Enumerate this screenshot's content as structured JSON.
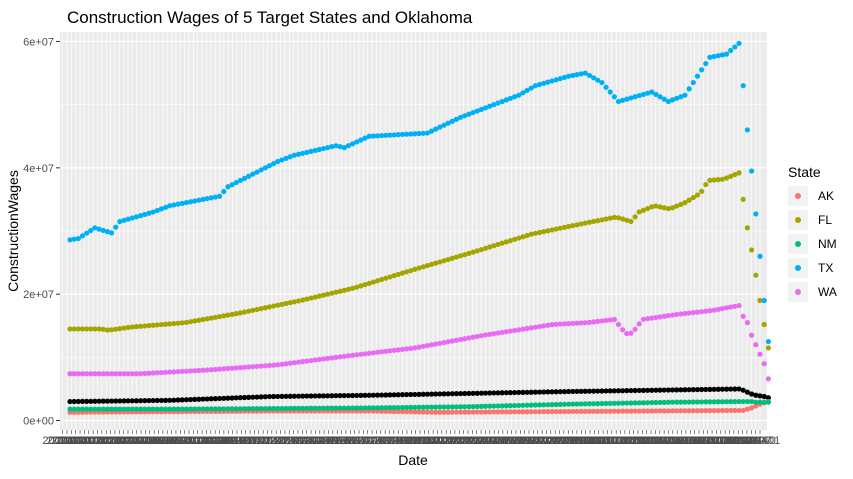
{
  "chart_data": {
    "type": "scatter",
    "title": "Construction Wages of 5 Target States and Oklahoma",
    "xlabel": "Date",
    "ylabel": "ConstructionWages",
    "x": [
      "2000-01",
      "2000-04",
      "2000-07",
      "2000-10",
      "2001-01",
      "2001-04",
      "2001-07",
      "2001-10",
      "2002-01",
      "2002-04",
      "2002-07",
      "2002-10",
      "2003-01",
      "2003-04",
      "2003-07",
      "2003-10",
      "2004-01",
      "2004-04",
      "2004-07",
      "2004-10",
      "2005-01",
      "2005-04",
      "2005-07",
      "2005-10",
      "2006-01",
      "2006-04",
      "2006-07",
      "2006-10",
      "2007-01",
      "2007-04",
      "2007-07",
      "2007-10",
      "2008-01",
      "2008-04",
      "2008-07",
      "2008-10",
      "2009-01",
      "2009-04",
      "2009-07",
      "2009-10",
      "2010-01",
      "2010-04",
      "2010-07",
      "2010-10",
      "2011-01",
      "2011-04",
      "2011-07",
      "2011-10",
      "2012-01",
      "2012-04",
      "2012-07",
      "2012-10",
      "2013-01",
      "2013-04",
      "2013-07",
      "2013-10",
      "2014-01",
      "2014-04",
      "2014-07",
      "2014-10",
      "2015-01",
      "2015-04",
      "2015-07",
      "2015-10",
      "2016-01",
      "2016-04",
      "2016-07",
      "2016-10",
      "2017-01",
      "2017-04",
      "2017-07",
      "2017-10",
      "2018-01",
      "2018-04",
      "2018-07",
      "2018-10",
      "2019-01",
      "2019-04",
      "2019-07",
      "2019-10",
      "2020-01",
      "2020-04",
      "2020-07",
      "2020-10",
      "2021-01",
      "2021-04",
      "2021-07",
      "2021-10",
      "2022-01",
      "2022-04",
      "2022-07",
      "2022-10",
      "2023-01",
      "2023-04",
      "2023-07",
      "2023-10",
      "2024-01",
      "2024-04",
      "2024-07",
      "2024-10",
      "2025-01",
      "2025-04",
      "2025-07",
      "2025-10",
      "2026-01",
      "2026-04",
      "2026-07",
      "2026-10",
      "2027-01",
      "2027-04",
      "2027-07",
      "2027-10",
      "2028-01",
      "2028-04",
      "2028-07",
      "2028-10",
      "2029-01",
      "2029-04",
      "2029-07",
      "2029-10",
      "2030-01",
      "2030-04",
      "2030-07",
      "2030-10",
      "2031-01",
      "2031-04",
      "2031-07",
      "2031-10",
      "2032-01",
      "2032-04",
      "2032-07",
      "2032-10",
      "2033-01",
      "2033-04",
      "2033-07",
      "2033-10",
      "2034-01",
      "2034-04",
      "2034-07",
      "2034-10",
      "2035-01",
      "2035-04",
      "2035-07",
      "2035-10",
      "2036-01",
      "2036-04",
      "2036-07",
      "2036-10",
      "2037-01",
      "2037-04",
      "2037-07",
      "2037-10",
      "2038-01",
      "2038-04",
      "2038-07",
      "2038-10",
      "2039-01",
      "2039-04",
      "2039-07",
      "2039-10",
      "2040-01"
    ],
    "xlim": [
      -0.6,
      161.6
    ],
    "ylim": [
      -1500000,
      61500000
    ],
    "y_ticks": [
      0,
      20000000,
      40000000,
      60000000
    ],
    "y_tick_labels": [
      "0e+00",
      "2e+07",
      "4e+07",
      "6e+07"
    ],
    "x_tick_labels": [
      "2000-01",
      "2040-01"
    ],
    "grid": true,
    "legend": {
      "title": "State",
      "position": "right"
    },
    "knots": {
      "TX": [
        [
          0,
          28600000.0
        ],
        [
          2,
          28800000.0
        ],
        [
          6,
          30500000.0
        ],
        [
          10,
          29700000.0
        ],
        [
          12,
          31500000.0
        ],
        [
          20,
          33000000.0
        ],
        [
          24,
          34000000.0
        ],
        [
          36,
          35500000.0
        ],
        [
          38,
          37000000.0
        ],
        [
          44,
          39000000.0
        ],
        [
          50,
          41000000.0
        ],
        [
          54,
          42000000.0
        ],
        [
          64,
          43500000.0
        ],
        [
          66,
          43200000.0
        ],
        [
          72,
          45000000.0
        ],
        [
          86,
          45500000.0
        ],
        [
          94,
          48000000.0
        ],
        [
          108,
          51500000.0
        ],
        [
          112,
          53000000.0
        ],
        [
          120,
          54500000.0
        ],
        [
          124,
          55000000.0
        ],
        [
          128,
          53500000.0
        ],
        [
          132,
          50500000.0
        ],
        [
          140,
          52000000.0
        ],
        [
          144,
          50500000.0
        ],
        [
          148,
          51500000.0
        ],
        [
          154,
          57500000.0
        ],
        [
          158,
          58000000.0
        ],
        [
          161,
          59700000.0
        ]
      ],
      "FL": [
        [
          0,
          14500000.0
        ],
        [
          8,
          14500000.0
        ],
        [
          10,
          14300000.0
        ],
        [
          16,
          14800000.0
        ],
        [
          30,
          15500000.0
        ],
        [
          44,
          17000000.0
        ],
        [
          60,
          19000000.0
        ],
        [
          74,
          21000000.0
        ],
        [
          90,
          24000000.0
        ],
        [
          104,
          26500000.0
        ],
        [
          120,
          29500000.0
        ],
        [
          136,
          31500000.0
        ],
        [
          142,
          32200000.0
        ],
        [
          146,
          31500000.0
        ],
        [
          148,
          33000000.0
        ],
        [
          152,
          34000000.0
        ],
        [
          156,
          33500000.0
        ],
        [
          160,
          34500000.0
        ],
        [
          164,
          36000000.0
        ],
        [
          166,
          38000000.0
        ],
        [
          170,
          38200000.0
        ],
        [
          174,
          39200000.0
        ]
      ],
      "WA": [
        [
          0,
          7400000.0
        ],
        [
          20,
          7400000.0
        ],
        [
          40,
          8000000.0
        ],
        [
          60,
          8800000.0
        ],
        [
          80,
          10200000.0
        ],
        [
          100,
          11500000.0
        ],
        [
          120,
          13500000.0
        ],
        [
          140,
          15200000.0
        ],
        [
          150,
          15500000.0
        ],
        [
          158,
          16000000.0
        ],
        [
          160,
          14500000.0
        ],
        [
          162,
          13500000.0
        ],
        [
          164,
          14500000.0
        ],
        [
          166,
          16000000.0
        ],
        [
          176,
          16800000.0
        ],
        [
          186,
          17400000.0
        ],
        [
          194,
          18200000.0
        ]
      ],
      "NM": [
        [
          0,
          1800000.0
        ],
        [
          30,
          1800000.0
        ],
        [
          60,
          1900000.0
        ],
        [
          90,
          2000000.0
        ],
        [
          120,
          2200000.0
        ],
        [
          150,
          2600000.0
        ],
        [
          180,
          2900000.0
        ],
        [
          200,
          3000000.0
        ]
      ],
      "AK": [
        [
          0,
          1300000.0
        ],
        [
          30,
          1400000.0
        ],
        [
          60,
          1500000.0
        ],
        [
          90,
          1500000.0
        ],
        [
          110,
          1300000.0
        ],
        [
          140,
          1400000.0
        ],
        [
          170,
          1500000.0
        ],
        [
          200,
          1600000.0
        ]
      ],
      "OK": [
        [
          0,
          3000000.0
        ],
        [
          30,
          3200000.0
        ],
        [
          60,
          3800000.0
        ],
        [
          90,
          4000000.0
        ],
        [
          120,
          4300000.0
        ],
        [
          150,
          4600000.0
        ],
        [
          175,
          4800000.0
        ],
        [
          200,
          5000000.0
        ]
      ]
    },
    "series": [
      {
        "name": "AK",
        "color": "#F8766D",
        "values_note": ""
      },
      {
        "name": "FL",
        "color": "#A3A500"
      },
      {
        "name": "NM",
        "color": "#00BF7D"
      },
      {
        "name": "TX",
        "color": "#00B0F6"
      },
      {
        "name": "WA",
        "color": "#E76BF3"
      }
    ],
    "unlabeled_series_color": "#000000",
    "panel_background": "#EBEBEB",
    "gridline_color": "#FFFFFF"
  }
}
